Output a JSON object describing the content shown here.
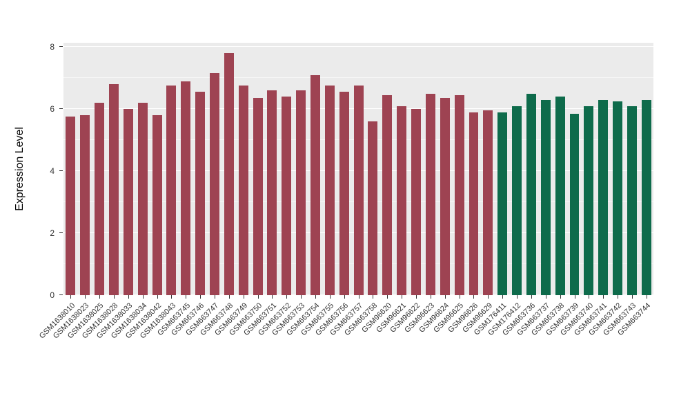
{
  "chart_data": {
    "type": "bar",
    "title": "",
    "xlabel": "",
    "ylabel": "Expression Level",
    "ylim": [
      0,
      8
    ],
    "yticks": [
      0,
      2,
      4,
      6,
      8
    ],
    "grid": true,
    "legend": "none",
    "panel_bg": "#ebebeb",
    "grid_major_color": "#ffffff",
    "grid_minor_color": "rgba(255,255,255,0.55)",
    "axis_text_color": "#333333",
    "categories": [
      "GSM1638010",
      "GSM1638023",
      "GSM1638025",
      "GSM1638028",
      "GSM1638033",
      "GSM1638034",
      "GSM1638042",
      "GSM1638043",
      "GSM663745",
      "GSM663746",
      "GSM663747",
      "GSM663748",
      "GSM663749",
      "GSM663750",
      "GSM663751",
      "GSM663752",
      "GSM663753",
      "GSM663754",
      "GSM663755",
      "GSM663756",
      "GSM663757",
      "GSM663758",
      "GSM96620",
      "GSM96621",
      "GSM96622",
      "GSM96623",
      "GSM96624",
      "GSM96625",
      "GSM96626",
      "GSM96629",
      "GSM176411",
      "GSM176412",
      "GSM663736",
      "GSM663737",
      "GSM663738",
      "GSM663739",
      "GSM663740",
      "GSM663741",
      "GSM663742",
      "GSM663743",
      "GSM663744"
    ],
    "values": [
      5.75,
      5.8,
      6.2,
      6.8,
      6.0,
      6.2,
      5.8,
      6.75,
      6.9,
      6.55,
      7.15,
      7.8,
      6.75,
      6.35,
      6.6,
      6.4,
      6.6,
      7.1,
      6.75,
      6.55,
      6.75,
      5.6,
      6.45,
      6.1,
      6.0,
      6.5,
      6.35,
      6.45,
      5.9,
      5.95,
      5.9,
      6.1,
      6.5,
      6.3,
      6.4,
      5.85,
      6.1,
      6.3,
      6.25,
      6.1,
      6.3
    ],
    "groups": [
      0,
      0,
      0,
      0,
      0,
      0,
      0,
      0,
      0,
      0,
      0,
      0,
      0,
      0,
      0,
      0,
      0,
      0,
      0,
      0,
      0,
      0,
      0,
      0,
      0,
      0,
      0,
      0,
      0,
      0,
      1,
      1,
      1,
      1,
      1,
      1,
      1,
      1,
      1,
      1,
      1
    ],
    "group_colors": [
      "#9e4352",
      "#0e6b4b"
    ]
  }
}
